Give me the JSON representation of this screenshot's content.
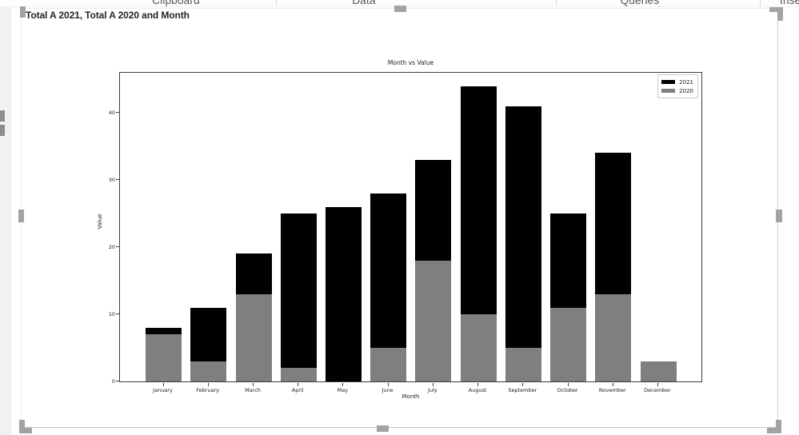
{
  "ribbon": {
    "groups": [
      "Clipboard",
      "Data",
      "Queries",
      "Insert"
    ]
  },
  "visual": {
    "title": "Total A 2021, Total A 2020 and Month"
  },
  "chart_data": {
    "type": "bar",
    "stacked": true,
    "title": "Month vs Value",
    "xlabel": "Month",
    "ylabel": "Value",
    "categories": [
      "January",
      "February",
      "March",
      "April",
      "May",
      "June",
      "July",
      "August",
      "September",
      "October",
      "November",
      "December"
    ],
    "series": [
      {
        "name": "2021",
        "color": "#000000",
        "values": [
          1,
          8,
          6,
          23,
          26,
          23,
          15,
          34,
          36,
          14,
          21,
          0
        ]
      },
      {
        "name": "2020",
        "color": "#7f7f7f",
        "values": [
          7,
          3,
          13,
          2,
          0,
          5,
          18,
          10,
          5,
          11,
          13,
          3
        ]
      }
    ],
    "stack_order_bottom_to_top": [
      "2020",
      "2021"
    ],
    "totals": [
      8,
      11,
      19,
      25,
      26,
      28,
      33,
      44,
      41,
      25,
      34,
      3
    ],
    "yticks": [
      0,
      10,
      20,
      30,
      40
    ],
    "ylim": [
      0,
      46.2
    ],
    "legend_position": "upper right",
    "grid": false
  }
}
